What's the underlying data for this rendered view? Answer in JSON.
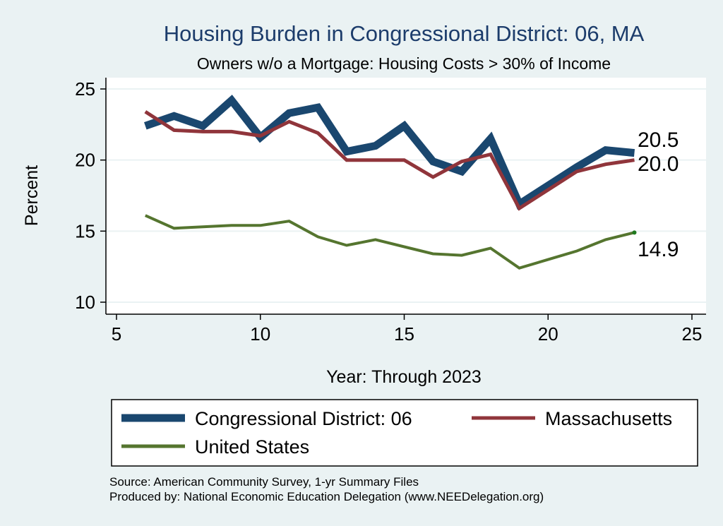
{
  "chart_data": {
    "type": "line",
    "title": "Housing Burden in Congressional District:  06, MA",
    "subtitle": "Owners w/o a Mortgage: Housing Costs > 30% of Income",
    "xlabel": "Year: Through 2023",
    "ylabel": "Percent",
    "xlim": [
      5,
      25
    ],
    "ylim": [
      10,
      25
    ],
    "xticks": [
      5,
      10,
      15,
      20,
      25
    ],
    "yticks": [
      10,
      15,
      20,
      25
    ],
    "grid": true,
    "legend_position": "bottom",
    "x": [
      6,
      7,
      8,
      9,
      10,
      11,
      12,
      13,
      14,
      15,
      16,
      17,
      18,
      19,
      20,
      21,
      22,
      23
    ],
    "series": [
      {
        "name": "Congressional District:  06",
        "color": "#1a476f",
        "values": [
          22.4,
          23.1,
          22.4,
          24.2,
          21.6,
          23.3,
          23.7,
          20.6,
          21.0,
          22.4,
          19.9,
          19.2,
          21.5,
          16.9,
          18.2,
          19.5,
          20.7,
          20.5
        ],
        "end_label": "20.5"
      },
      {
        "name": "Massachusetts",
        "color": "#90353b",
        "values": [
          23.4,
          22.1,
          22.0,
          22.0,
          21.7,
          22.7,
          21.9,
          20.0,
          20.0,
          20.0,
          18.8,
          19.9,
          20.4,
          16.6,
          17.9,
          19.2,
          19.7,
          20.0
        ],
        "end_label": "20.0"
      },
      {
        "name": "United States",
        "color": "#55752f",
        "values": [
          16.1,
          15.2,
          15.3,
          15.4,
          15.4,
          15.7,
          14.6,
          14.0,
          14.4,
          13.9,
          13.4,
          13.3,
          13.8,
          12.4,
          13.0,
          13.6,
          14.4,
          14.9
        ],
        "end_label": "14.9"
      }
    ]
  },
  "notes": {
    "source": "Source: American Community Survey, 1-yr Summary Files",
    "produced": "Produced by: National Economic Education Delegation (www.NEEDelegation.org)"
  }
}
